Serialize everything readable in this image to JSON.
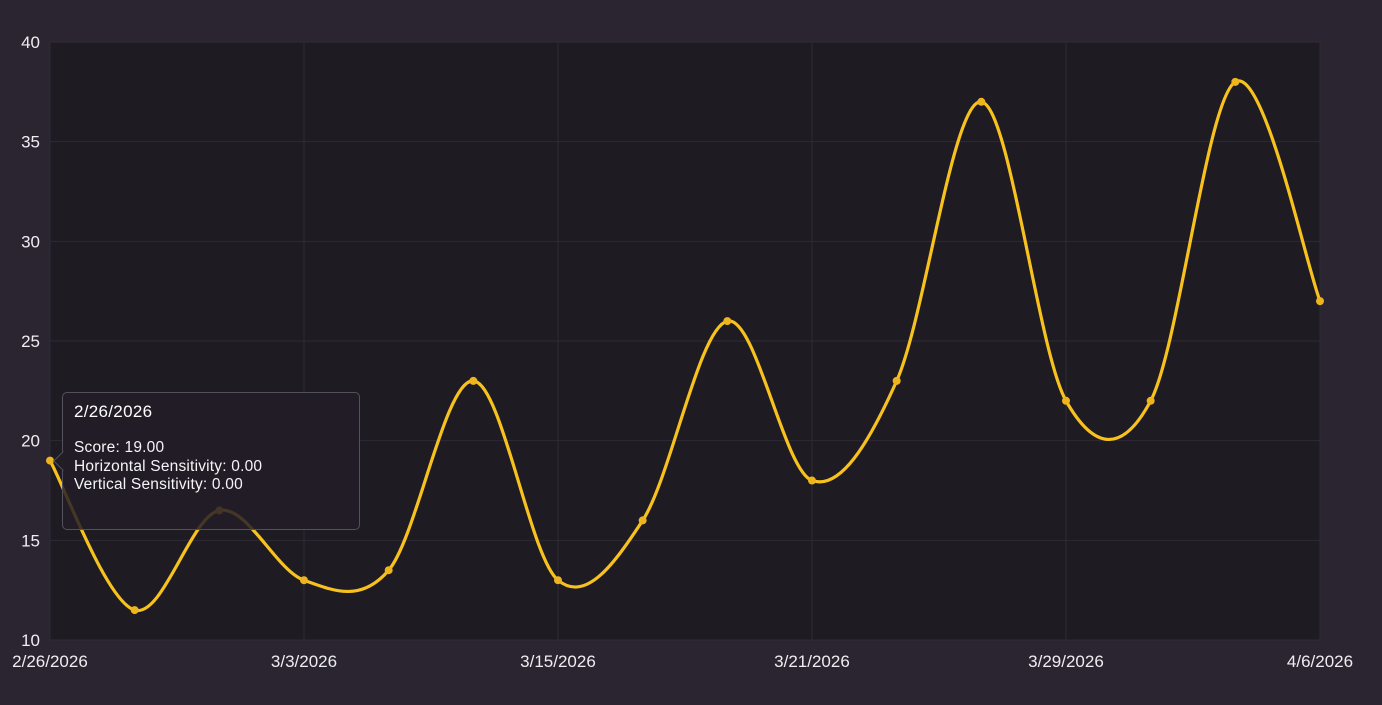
{
  "chart_data": {
    "type": "line",
    "title": "",
    "xlabel": "",
    "ylabel": "",
    "num_points": 16,
    "x_tick_labels": [
      "2/26/2026",
      "3/3/2026",
      "3/15/2026",
      "3/21/2026",
      "3/29/2026",
      "4/6/2026"
    ],
    "x_tick_point_indices": [
      0,
      3,
      6,
      9,
      12,
      15
    ],
    "yticks": [
      10,
      15,
      20,
      25,
      30,
      35,
      40
    ],
    "ylim": [
      10,
      40
    ],
    "grid": true,
    "legend_position": "none",
    "series": [
      {
        "name": "Score",
        "values": [
          19,
          11.5,
          16.5,
          13,
          13.5,
          23,
          13,
          16,
          26,
          18,
          23,
          37,
          22,
          22,
          38,
          27
        ]
      }
    ]
  },
  "tooltip": {
    "title": "2/26/2026",
    "rows": [
      {
        "label": "Score",
        "value": "19.00",
        "text": "Score: 19.00"
      },
      {
        "label": "Horizontal Sensitivity",
        "value": "0.00",
        "text": "Horizontal Sensitivity: 0.00"
      },
      {
        "label": "Vertical Sensitivity",
        "value": "0.00",
        "text": "Vertical Sensitivity: 0.00"
      }
    ]
  },
  "colors": {
    "page_background": "#2a2531",
    "plot_background": "#1f1b23",
    "gridline": "#2f2b36",
    "axis_text": "#efedf1",
    "line": "#f8c21e",
    "marker": "#eeb41d",
    "tooltip_border": "#55515c",
    "tooltip_text": "#ffffff"
  }
}
